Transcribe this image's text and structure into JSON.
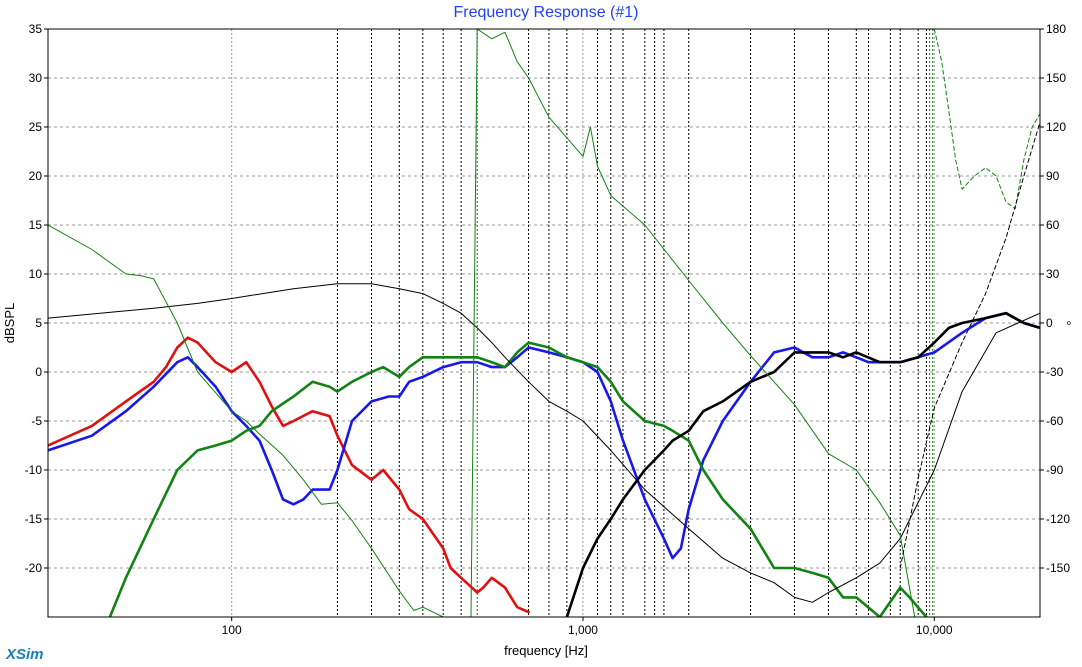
{
  "app": {
    "brand": "XSim"
  },
  "chart_data": {
    "type": "line",
    "title": "Frequency Response (#1)",
    "title_color": "#1f3fff",
    "xlabel": "frequency [Hz]",
    "ylabel": "dBSPL",
    "right_axis_label": "°",
    "x_scale": "log",
    "xlim": [
      30,
      20000
    ],
    "ylim": [
      -25,
      35
    ],
    "y2lim": [
      -180,
      180
    ],
    "x_ticks": [
      {
        "value": 100,
        "label": "100"
      },
      {
        "value": 1000,
        "label": "1,000"
      },
      {
        "value": 10000,
        "label": "10,000"
      }
    ],
    "y_ticks": [
      35,
      30,
      25,
      20,
      15,
      10,
      5,
      0,
      -5,
      -10,
      -15,
      -20
    ],
    "y2_ticks": [
      180,
      150,
      120,
      90,
      60,
      30,
      0,
      -30,
      -60,
      -90,
      -120,
      -150
    ],
    "grid": true,
    "series": [
      {
        "color": "#e01010",
        "width": 2.6,
        "axis": "left",
        "style": "solid",
        "x": [
          30,
          40,
          50,
          60,
          65,
          70,
          75,
          80,
          90,
          100,
          110,
          120,
          130,
          140,
          150,
          170,
          190,
          200,
          220,
          250,
          270,
          300,
          320,
          350,
          400,
          420,
          450,
          500,
          520,
          550,
          600,
          650,
          700
        ],
        "y": [
          -7.5,
          -5.5,
          -3,
          -1,
          0.5,
          2.5,
          3.5,
          3,
          1,
          0,
          1,
          -1,
          -3.5,
          -5.5,
          -5,
          -4,
          -4.5,
          -6.5,
          -9.5,
          -11,
          -10,
          -12,
          -14,
          -15,
          -18,
          -20,
          -21,
          -22.5,
          -22,
          -21,
          -22,
          -24,
          -24.5
        ]
      },
      {
        "color": "#1818e8",
        "width": 2.6,
        "axis": "left",
        "style": "solid",
        "x": [
          30,
          40,
          50,
          60,
          70,
          75,
          80,
          90,
          100,
          110,
          120,
          130,
          140,
          150,
          160,
          170,
          180,
          190,
          200,
          220,
          250,
          280,
          300,
          320,
          350,
          400,
          450,
          500,
          550,
          600,
          650,
          700,
          800,
          900,
          1000,
          1100,
          1200,
          1300,
          1500,
          1700,
          1800,
          1900,
          2000,
          2200,
          2500,
          3000,
          3500,
          4000,
          4500,
          5000,
          5500,
          6000,
          6500,
          7000,
          8000,
          9000,
          10000,
          12000,
          14000,
          16000,
          18000,
          20000
        ],
        "y": [
          -8,
          -6.5,
          -4,
          -1.5,
          1,
          1.5,
          0.5,
          -1.5,
          -4,
          -5.5,
          -7,
          -10,
          -13,
          -13.5,
          -13,
          -12,
          -12,
          -12,
          -10,
          -5,
          -3,
          -2.5,
          -2.5,
          -1,
          -0.5,
          0.5,
          1,
          1,
          0.5,
          0.5,
          1.5,
          2.5,
          2,
          1.5,
          1,
          0,
          -3,
          -7,
          -13,
          -17,
          -19,
          -18,
          -14,
          -9,
          -5,
          -1,
          2,
          2.5,
          1.5,
          1.5,
          2,
          1.5,
          1,
          1,
          1,
          1.5,
          2,
          4,
          5.5,
          6,
          5,
          4.5
        ]
      },
      {
        "color": "#128212",
        "width": 2.6,
        "axis": "left",
        "style": "solid",
        "x": [
          45,
          50,
          60,
          70,
          80,
          90,
          100,
          110,
          120,
          130,
          150,
          170,
          190,
          200,
          220,
          250,
          270,
          300,
          320,
          350,
          400,
          450,
          500,
          550,
          600,
          650,
          700,
          800,
          900,
          1000,
          1100,
          1200,
          1300,
          1500,
          1700,
          1800,
          2000,
          2200,
          2500,
          3000,
          3500,
          4000,
          4500,
          5000,
          5500,
          6000,
          7000,
          8000,
          8500,
          9500
        ],
        "y": [
          -25,
          -21,
          -15,
          -10,
          -8,
          -7.5,
          -7,
          -6,
          -5.5,
          -4,
          -2.5,
          -1,
          -1.5,
          -2,
          -1,
          0,
          0.5,
          -0.5,
          0.5,
          1.5,
          1.5,
          1.5,
          1.5,
          1,
          0.5,
          2,
          3,
          2.5,
          1.5,
          1,
          0.5,
          -1,
          -3,
          -5,
          -5.5,
          -6,
          -7,
          -10,
          -13,
          -16,
          -20,
          -20,
          -20.5,
          -21,
          -23,
          -23,
          -25,
          -22,
          -23,
          -25
        ]
      },
      {
        "color": "#000000",
        "width": 2.6,
        "axis": "left",
        "style": "solid",
        "x": [
          900,
          1000,
          1100,
          1200,
          1300,
          1500,
          1700,
          1800,
          2000,
          2200,
          2500,
          3000,
          3500,
          4000,
          4500,
          5000,
          5500,
          6000,
          7000,
          8000,
          9000,
          10000,
          11000,
          12000,
          14000,
          16000,
          18000,
          20000
        ],
        "y": [
          -25,
          -20,
          -17,
          -15,
          -13,
          -10,
          -8,
          -7,
          -6,
          -4,
          -3,
          -1,
          0,
          2,
          2,
          2,
          1.5,
          2,
          1,
          1,
          1.5,
          3,
          4.5,
          5,
          5.5,
          6,
          5,
          4.5
        ]
      },
      {
        "color": "#000000",
        "width": 1,
        "axis": "left",
        "style": "solid",
        "x": [
          30,
          60,
          80,
          100,
          150,
          200,
          250,
          300,
          350,
          400,
          450,
          500,
          550,
          600,
          700,
          800,
          900,
          1000,
          1200,
          1500,
          2000,
          2500,
          3000,
          3500,
          4000,
          4500,
          5000,
          6000,
          7000,
          8000,
          10000,
          12000,
          15000,
          20000
        ],
        "y": [
          5.5,
          6.5,
          7,
          7.5,
          8.5,
          9,
          9,
          8.5,
          8,
          7,
          6,
          4.5,
          3,
          1.5,
          -1,
          -3,
          -4,
          -5,
          -8,
          -12,
          -16,
          -19,
          -20.5,
          -21.5,
          -23,
          -23.5,
          -22.5,
          -21,
          -19.5,
          -17,
          -10,
          -2,
          4,
          6
        ]
      },
      {
        "color": "#128212",
        "width": 1,
        "axis": "right",
        "style": "solid",
        "x": [
          30,
          40,
          50,
          55,
          60,
          70,
          80,
          100,
          110,
          120,
          140,
          160,
          180,
          200,
          220,
          250,
          300,
          330,
          350,
          400,
          450,
          480,
          500,
          550,
          600,
          650,
          700,
          800,
          1000,
          1050,
          1100,
          1200,
          1500,
          2000,
          2500,
          3000,
          4000,
          5000,
          6000,
          7000,
          8000,
          8800
        ],
        "y": [
          60,
          45,
          30,
          29,
          27,
          0,
          -30,
          -54,
          -60,
          -68,
          -81,
          -96,
          -111,
          -110,
          -121,
          -138,
          -164,
          -176,
          -174,
          -180,
          -180,
          -180,
          180,
          174,
          178,
          160,
          150,
          126,
          102,
          120,
          96,
          78,
          60,
          26,
          0,
          -20,
          -50,
          -80,
          -90,
          -110,
          -130,
          -180
        ]
      },
      {
        "color": "#128212",
        "width": 1,
        "axis": "right",
        "style": "dashed",
        "x": [
          10000,
          10500,
          11000,
          11500,
          12000,
          13000,
          14000,
          15000,
          16000,
          17000,
          18000,
          19000,
          20000
        ],
        "y": [
          180,
          160,
          130,
          100,
          82,
          90,
          95,
          90,
          74,
          70,
          100,
          120,
          128
        ]
      },
      {
        "color": "#000000",
        "width": 1,
        "axis": "right",
        "style": "dashed",
        "x": [
          8000,
          9000,
          10000,
          12000,
          14000,
          16000,
          18000,
          20000
        ],
        "y": [
          -150,
          -95,
          -52,
          -12,
          18,
          52,
          90,
          123
        ]
      }
    ],
    "vertical_markers": [
      {
        "x": 200,
        "color": "#000000",
        "style": "dotted"
      },
      {
        "x": 250,
        "color": "#000000",
        "style": "dotted"
      },
      {
        "x": 300,
        "color": "#000000",
        "style": "dotted"
      },
      {
        "x": 350,
        "color": "#000000",
        "style": "dotted"
      },
      {
        "x": 400,
        "color": "#000000",
        "style": "dotted"
      },
      {
        "x": 450,
        "color": "#000000",
        "style": "dotted"
      },
      {
        "x": 500,
        "color": "#128212",
        "style": "dotted"
      },
      {
        "x": 700,
        "color": "#000000",
        "style": "dotted"
      },
      {
        "x": 800,
        "color": "#000000",
        "style": "dotted"
      },
      {
        "x": 900,
        "color": "#000000",
        "style": "dotted"
      },
      {
        "x": 1100,
        "color": "#000000",
        "style": "dotted"
      },
      {
        "x": 1200,
        "color": "#000000",
        "style": "dotted"
      },
      {
        "x": 1300,
        "color": "#000000",
        "style": "dotted"
      },
      {
        "x": 1500,
        "color": "#000000",
        "style": "dotted"
      },
      {
        "x": 1600,
        "color": "#000000",
        "style": "dotted"
      },
      {
        "x": 1700,
        "color": "#000000",
        "style": "dotted"
      },
      {
        "x": 2000,
        "color": "#000000",
        "style": "dotted"
      },
      {
        "x": 3000,
        "color": "#000000",
        "style": "dotted"
      },
      {
        "x": 4000,
        "color": "#000000",
        "style": "dotted"
      },
      {
        "x": 5000,
        "color": "#000000",
        "style": "dotted"
      },
      {
        "x": 6000,
        "color": "#000000",
        "style": "dotted"
      },
      {
        "x": 6500,
        "color": "#000000",
        "style": "dotted"
      },
      {
        "x": 7500,
        "color": "#000000",
        "style": "dotted"
      },
      {
        "x": 8000,
        "color": "#000000",
        "style": "dotted"
      },
      {
        "x": 9000,
        "color": "#000000",
        "style": "dotted"
      },
      {
        "x": 9500,
        "color": "#000000",
        "style": "dotted"
      },
      {
        "x": 9700,
        "color": "#128212",
        "style": "dotted"
      },
      {
        "x": 9900,
        "color": "#128212",
        "style": "dotted"
      }
    ]
  }
}
